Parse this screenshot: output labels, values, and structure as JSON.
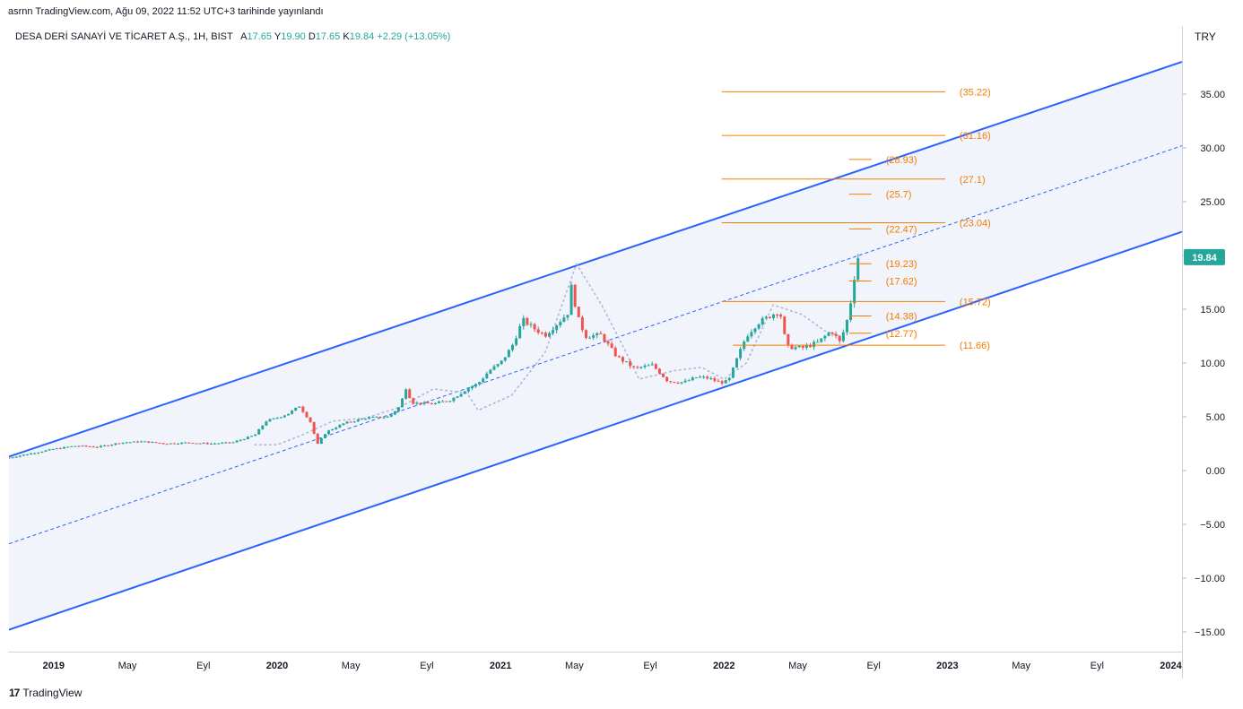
{
  "header": {
    "published_line": "asrnn TradingView.com, Ağu 09, 2022 11:52 UTC+3 tarihinde yayınlandı"
  },
  "legend": {
    "symbol": "DESA DERİ SANAYİ VE TİCARET A.Ş., 1H, BIST",
    "open_label": "A",
    "open": "17.65",
    "high_label": "Y",
    "high": "19.90",
    "low_label": "D",
    "low": "17.65",
    "close_label": "K",
    "close": "19.84",
    "change": "+2.29 (+13.05%)"
  },
  "price_axis": {
    "currency": "TRY"
  },
  "footer": {
    "brand": "TradingView",
    "logo_text": "17"
  },
  "colors": {
    "channel": "#2962ff",
    "channel_fill": "#e8ecf8",
    "fib": "#f57c00",
    "up": "#26a69a",
    "down": "#ef5350",
    "dots": "#b2b5d6",
    "last_price_bg": "#26a69a"
  },
  "chart_data": {
    "type": "candlestick",
    "y_ticks": [
      "35.00",
      "30.00",
      "25.00",
      "20.00",
      "15.00",
      "10.00",
      "5.00",
      "0.00",
      "−5.00",
      "−10.00",
      "−15.00"
    ],
    "y_tick_values": [
      35,
      30,
      25,
      20,
      15,
      10,
      5,
      0,
      -5,
      -10,
      -15
    ],
    "x_ticks": [
      {
        "label": "2019",
        "t": 2019.0,
        "bold": true
      },
      {
        "label": "May",
        "t": 2019.33,
        "bold": false
      },
      {
        "label": "Eyl",
        "t": 2019.67,
        "bold": false
      },
      {
        "label": "2020",
        "t": 2020.0,
        "bold": true
      },
      {
        "label": "May",
        "t": 2020.33,
        "bold": false
      },
      {
        "label": "Eyl",
        "t": 2020.67,
        "bold": false
      },
      {
        "label": "2021",
        "t": 2021.0,
        "bold": true
      },
      {
        "label": "May",
        "t": 2021.33,
        "bold": false
      },
      {
        "label": "Eyl",
        "t": 2021.67,
        "bold": false
      },
      {
        "label": "2022",
        "t": 2022.0,
        "bold": true
      },
      {
        "label": "May",
        "t": 2022.33,
        "bold": false
      },
      {
        "label": "Eyl",
        "t": 2022.67,
        "bold": false
      },
      {
        "label": "2023",
        "t": 2023.0,
        "bold": true
      },
      {
        "label": "May",
        "t": 2023.33,
        "bold": false
      },
      {
        "label": "Eyl",
        "t": 2023.67,
        "bold": false
      },
      {
        "label": "2024",
        "t": 2024.0,
        "bold": true
      }
    ],
    "last_price": "19.84",
    "last_price_value": 19.84,
    "regression_channel": {
      "upper": [
        [
          2018.8,
          1.3
        ],
        [
          2024.05,
          38.0
        ]
      ],
      "middle": [
        [
          2018.8,
          -6.8
        ],
        [
          2024.05,
          30.2
        ]
      ],
      "lower": [
        [
          2018.8,
          -14.8
        ],
        [
          2024.05,
          22.2
        ]
      ]
    },
    "fib_levels": [
      {
        "label": "(35.22)",
        "value": 35.22,
        "t0": 2021.99,
        "t1": 2022.99
      },
      {
        "label": "(31.16)",
        "value": 31.16,
        "t0": 2021.99,
        "t1": 2022.99
      },
      {
        "label": "(28.93)",
        "value": 28.93,
        "t0": 2022.56,
        "t1": 2022.66
      },
      {
        "label": "(27.1)",
        "value": 27.1,
        "t0": 2021.99,
        "t1": 2022.99
      },
      {
        "label": "(25.7)",
        "value": 25.7,
        "t0": 2022.56,
        "t1": 2022.66
      },
      {
        "label": "(23.04)",
        "value": 23.04,
        "t0": 2021.99,
        "t1": 2022.99
      },
      {
        "label": "(22.47)",
        "value": 22.47,
        "t0": 2022.56,
        "t1": 2022.66
      },
      {
        "label": "(19.23)",
        "value": 19.23,
        "t0": 2022.56,
        "t1": 2022.66
      },
      {
        "label": "(17.62)",
        "value": 17.62,
        "t0": 2022.56,
        "t1": 2022.66
      },
      {
        "label": "(15.72)",
        "value": 15.72,
        "t0": 2021.99,
        "t1": 2022.99
      },
      {
        "label": "(14.38)",
        "value": 14.38,
        "t0": 2022.56,
        "t1": 2022.66
      },
      {
        "label": "(12.77)",
        "value": 12.77,
        "t0": 2022.56,
        "t1": 2022.66
      },
      {
        "label": "(11.66)",
        "value": 11.66,
        "t0": 2022.04,
        "t1": 2022.99
      }
    ],
    "price_path": [
      [
        2018.8,
        1.2
      ],
      [
        2018.9,
        1.6
      ],
      [
        2019.0,
        2.0
      ],
      [
        2019.1,
        2.3
      ],
      [
        2019.2,
        2.2
      ],
      [
        2019.3,
        2.6
      ],
      [
        2019.4,
        2.7
      ],
      [
        2019.5,
        2.5
      ],
      [
        2019.6,
        2.6
      ],
      [
        2019.7,
        2.5
      ],
      [
        2019.8,
        2.6
      ],
      [
        2019.9,
        3.3
      ],
      [
        2019.95,
        4.6
      ],
      [
        2020.0,
        4.9
      ],
      [
        2020.05,
        5.3
      ],
      [
        2020.1,
        6.0
      ],
      [
        2020.15,
        4.5
      ],
      [
        2020.18,
        2.4
      ],
      [
        2020.22,
        3.6
      ],
      [
        2020.3,
        4.4
      ],
      [
        2020.4,
        4.9
      ],
      [
        2020.5,
        5.0
      ],
      [
        2020.55,
        6.0
      ],
      [
        2020.58,
        7.9
      ],
      [
        2020.6,
        6.3
      ],
      [
        2020.7,
        6.2
      ],
      [
        2020.78,
        6.6
      ],
      [
        2020.85,
        7.6
      ],
      [
        2020.9,
        8.1
      ],
      [
        2020.95,
        9.3
      ],
      [
        2021.0,
        10.0
      ],
      [
        2021.05,
        11.5
      ],
      [
        2021.1,
        14.0
      ],
      [
        2021.15,
        13.2
      ],
      [
        2021.2,
        12.6
      ],
      [
        2021.25,
        13.6
      ],
      [
        2021.3,
        14.6
      ],
      [
        2021.32,
        17.5
      ],
      [
        2021.34,
        14.5
      ],
      [
        2021.38,
        12.5
      ],
      [
        2021.45,
        12.6
      ],
      [
        2021.52,
        10.6
      ],
      [
        2021.6,
        9.5
      ],
      [
        2021.68,
        9.8
      ],
      [
        2021.75,
        8.3
      ],
      [
        2021.82,
        8.2
      ],
      [
        2021.88,
        8.7
      ],
      [
        2021.93,
        8.6
      ],
      [
        2021.98,
        8.2
      ],
      [
        2022.02,
        8.3
      ],
      [
        2022.06,
        10.5
      ],
      [
        2022.1,
        12.5
      ],
      [
        2022.15,
        13.7
      ],
      [
        2022.2,
        14.3
      ],
      [
        2022.25,
        14.9
      ],
      [
        2022.28,
        11.5
      ],
      [
        2022.35,
        11.4
      ],
      [
        2022.42,
        11.9
      ],
      [
        2022.48,
        13.0
      ],
      [
        2022.52,
        11.9
      ],
      [
        2022.56,
        14.6
      ],
      [
        2022.58,
        17.6
      ],
      [
        2022.6,
        19.8
      ]
    ],
    "dots_path": [
      [
        2019.9,
        2.4
      ],
      [
        2020.0,
        2.4
      ],
      [
        2020.1,
        3.2
      ],
      [
        2020.25,
        4.6
      ],
      [
        2020.4,
        4.9
      ],
      [
        2020.55,
        5.9
      ],
      [
        2020.7,
        7.6
      ],
      [
        2020.85,
        7.2
      ],
      [
        2020.9,
        5.6
      ],
      [
        2021.05,
        7.0
      ],
      [
        2021.2,
        11.0
      ],
      [
        2021.34,
        19.2
      ],
      [
        2021.45,
        15.5
      ],
      [
        2021.55,
        11.5
      ],
      [
        2021.62,
        8.5
      ],
      [
        2021.78,
        9.3
      ],
      [
        2021.9,
        9.6
      ],
      [
        2022.0,
        8.5
      ],
      [
        2022.1,
        10.0
      ],
      [
        2022.22,
        15.4
      ],
      [
        2022.35,
        14.5
      ],
      [
        2022.45,
        13.0
      ],
      [
        2022.55,
        12.3
      ]
    ]
  }
}
